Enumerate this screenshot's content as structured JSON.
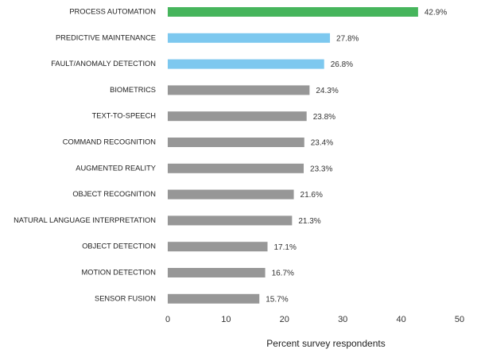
{
  "chart_data": {
    "type": "hbar",
    "categories": [
      "PROCESS AUTOMATION",
      "PREDICTIVE MAINTENANCE",
      "FAULT/ANOMALY DETECTION",
      "BIOMETRICS",
      "TEXT-TO-SPEECH",
      "COMMAND RECOGNITION",
      "AUGMENTED REALITY",
      "OBJECT RECOGNITION",
      "NATURAL LANGUAGE INTERPRETATION",
      "OBJECT DETECTION",
      "MOTION DETECTION",
      "SENSOR FUSION"
    ],
    "values": [
      42.9,
      27.8,
      26.8,
      24.3,
      23.8,
      23.4,
      23.3,
      21.6,
      21.3,
      17.1,
      16.7,
      15.7
    ],
    "value_labels": [
      "42.9%",
      "27.8%",
      "26.8%",
      "24.3%",
      "23.8%",
      "23.4%",
      "23.3%",
      "21.6%",
      "21.3%",
      "17.1%",
      "16.7%",
      "15.7%"
    ],
    "colors": [
      "#46b55c",
      "#7dc8ef",
      "#7dc8ef",
      "#979797",
      "#979797",
      "#979797",
      "#979797",
      "#979797",
      "#979797",
      "#979797",
      "#979797",
      "#979797"
    ],
    "xlabel": "Percent survey respondents",
    "xlim": [
      0,
      50
    ],
    "xticks": [
      0,
      10,
      20,
      30,
      40,
      50
    ],
    "grid": false
  }
}
